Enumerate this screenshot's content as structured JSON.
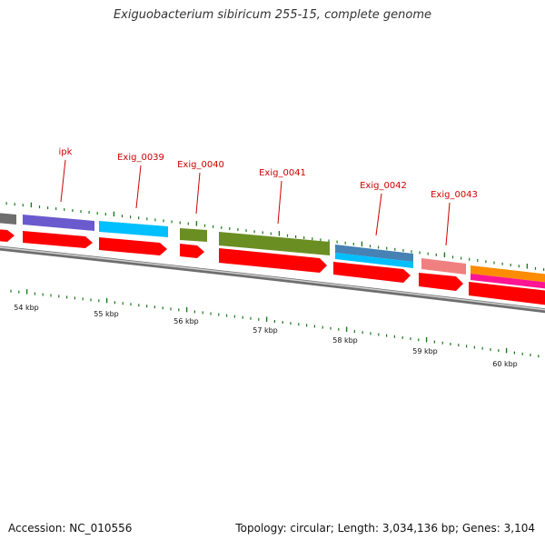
{
  "title": "Exiguobacterium sibiricum 255-15, complete genome",
  "footer": {
    "accession": "Accession: NC_010556",
    "summary": "Topology: circular; Length: 3,034,136 bp; Genes: 3,104"
  },
  "scale": {
    "unit": "kbp",
    "labels": [
      "54 kbp",
      "55 kbp",
      "56 kbp",
      "57 kbp",
      "58 kbp",
      "59 kbp",
      "60 kbp"
    ]
  },
  "gene_labels": [
    "ipk",
    "Exig_0039",
    "Exig_0040",
    "Exig_0041",
    "Exig_0042",
    "Exig_0043"
  ],
  "colors": {
    "backbone": "#808080",
    "cds_arrow": "#ff0000",
    "label_text": "#cc0000",
    "tick": "#1a7a1a",
    "ipk": "#6a5acd",
    "exig_0039": "#00bfff",
    "exig_0040": "#6b8e23",
    "exig_0041": "#6b8e23",
    "exig_0042_a": "#4682b4",
    "exig_0042_b": "#00bfff",
    "exig_0043": "#f08080",
    "next_gene_a": "#ff8c00",
    "next_gene_b": "#ff1493",
    "prev_gene": "#808080"
  }
}
